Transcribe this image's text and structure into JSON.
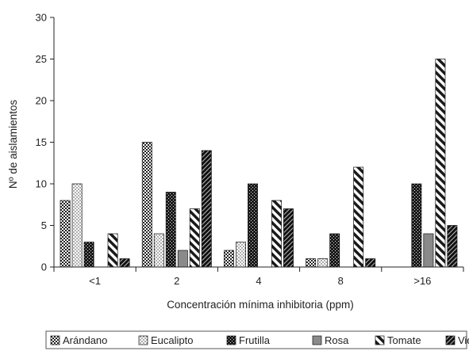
{
  "chart_data": {
    "type": "bar",
    "title": "",
    "xlabel": "Concentración mínima inhibitoria (ppm)",
    "ylabel": "Nº de aislamientos",
    "categories": [
      "<1",
      "2",
      "4",
      "8",
      ">16"
    ],
    "ylim": [
      0,
      30
    ],
    "yticks": [
      0,
      5,
      10,
      15,
      20,
      25,
      30
    ],
    "grid": false,
    "legend_position": "bottom",
    "series": [
      {
        "name": "Arándano",
        "pattern": "checker",
        "values": [
          8,
          15,
          2,
          1,
          0
        ]
      },
      {
        "name": "Eucalipto",
        "pattern": "dots",
        "values": [
          10,
          4,
          3,
          1,
          0
        ]
      },
      {
        "name": "Frutilla",
        "pattern": "dark-checker",
        "values": [
          3,
          9,
          10,
          4,
          10
        ]
      },
      {
        "name": "Rosa",
        "pattern": "solid-gray",
        "values": [
          0,
          2,
          0,
          0,
          4
        ]
      },
      {
        "name": "Tomate",
        "pattern": "diagonal",
        "values": [
          4,
          7,
          8,
          12,
          25
        ]
      },
      {
        "name": "Vid",
        "pattern": "dark-diagonal",
        "values": [
          1,
          14,
          7,
          1,
          5
        ]
      }
    ]
  }
}
